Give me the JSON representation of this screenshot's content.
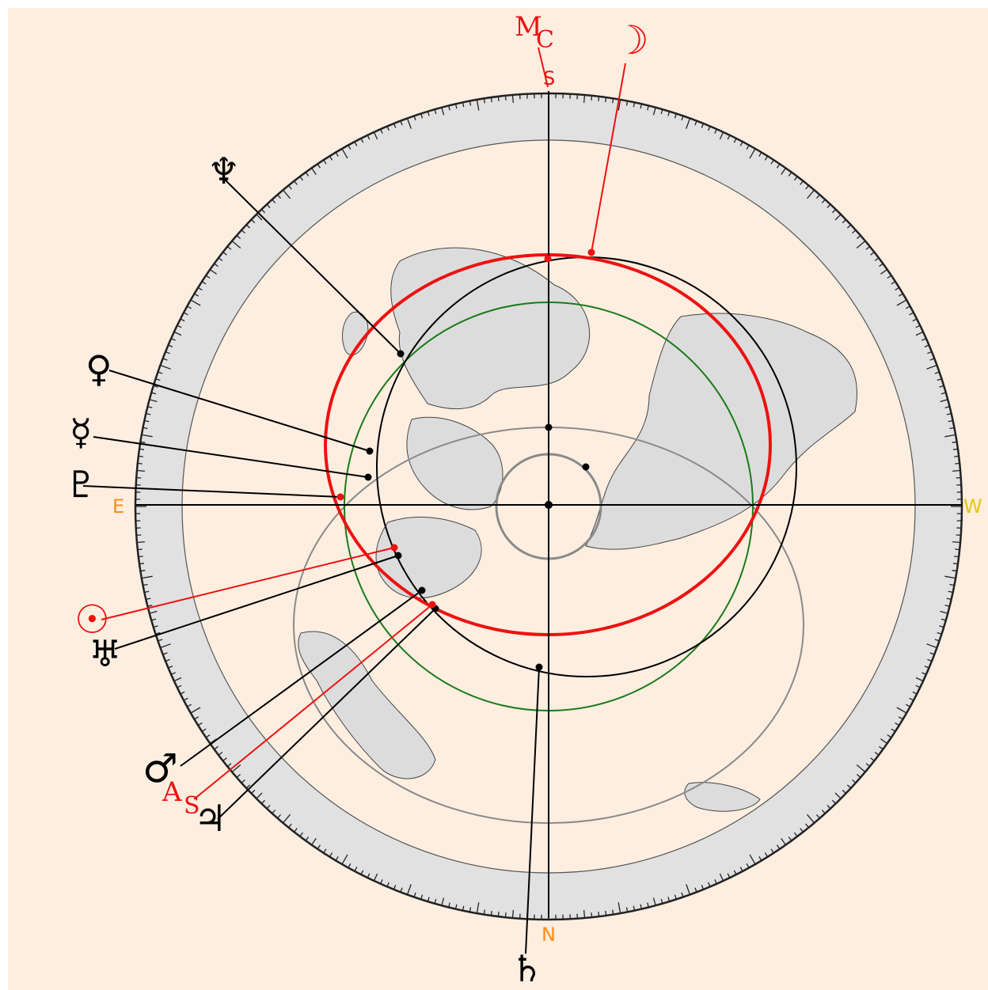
{
  "colors": {
    "background": "#fdeee0",
    "ring": "#e1e1e1",
    "land": "#dcdcdc",
    "black": "#000000",
    "red": "#ee1111",
    "green": "#1a7a1a",
    "gray": "#8a8a8a",
    "orange": "#ff8c1a",
    "yellow": "#e8c800"
  },
  "directions": {
    "south": "S",
    "north": "N",
    "east": "E",
    "west": "W"
  },
  "angles": {
    "mc": {
      "main": "M",
      "sub": "C"
    },
    "asc": {
      "main": "A",
      "sub": "S"
    }
  },
  "planets": {
    "moon": "☽",
    "neptune": "♆",
    "venus": "♀",
    "mercury": "☿",
    "pluto": "♇",
    "sun": "☉",
    "uranus": "♅",
    "mars": "♂",
    "jupiter": "♃",
    "saturn": "♄"
  }
}
